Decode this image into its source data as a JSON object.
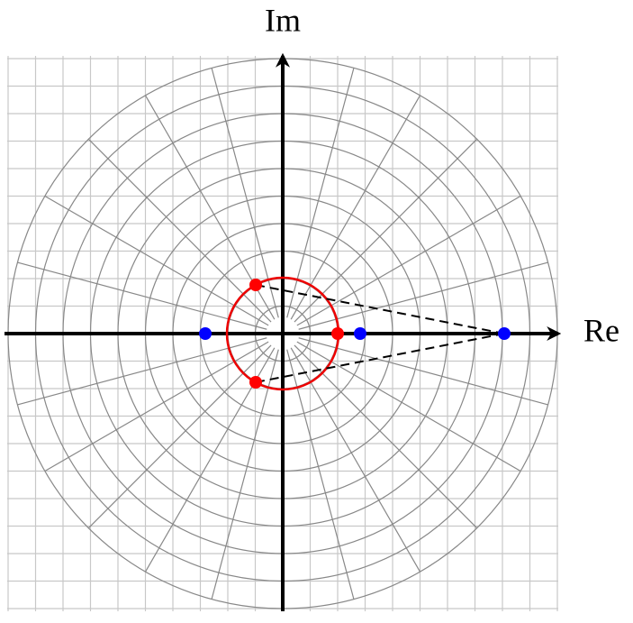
{
  "axes": {
    "imaginary_label": "Im",
    "real_label": "Re"
  }
}
